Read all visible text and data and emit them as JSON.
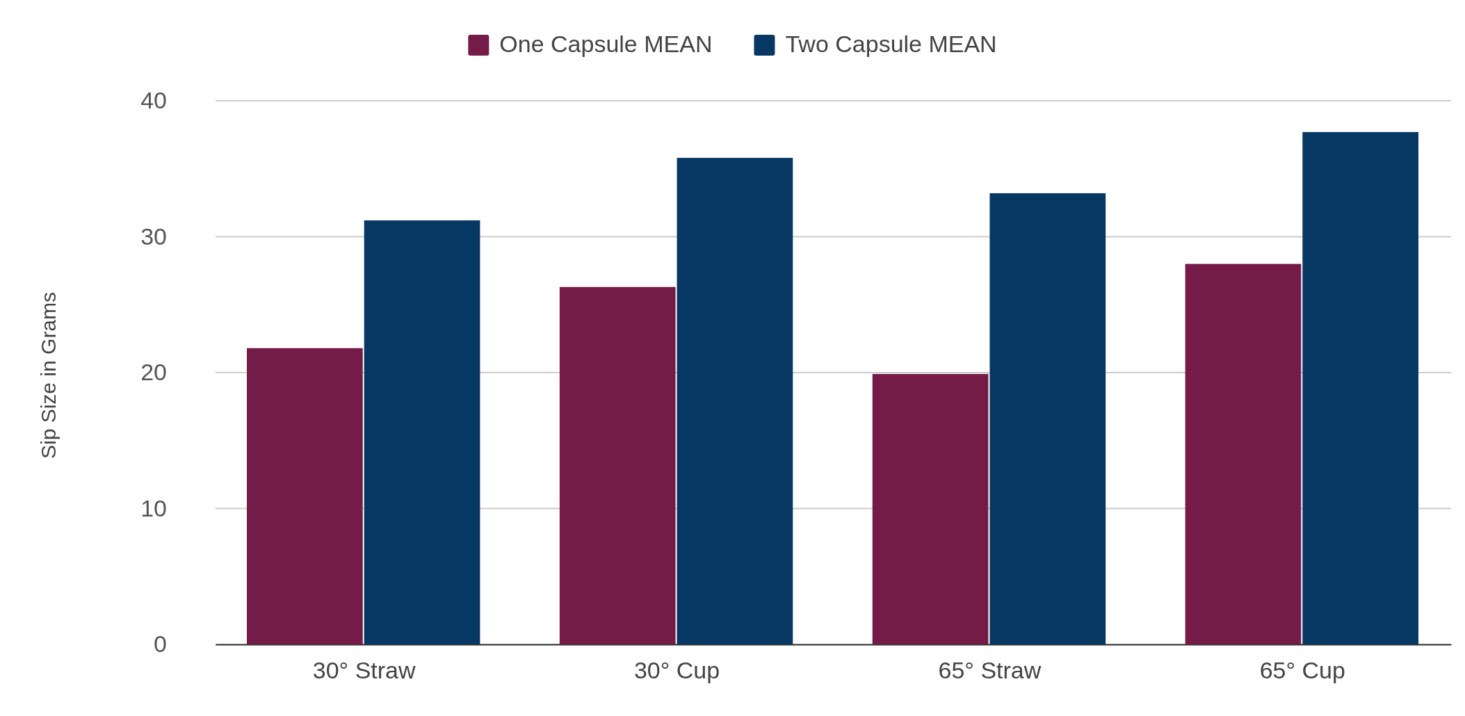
{
  "chart_data": {
    "type": "bar",
    "ylabel": "Sip Size in Grams",
    "categories": [
      "30° Straw",
      "30° Cup",
      "65°  Straw",
      "65° Cup"
    ],
    "series": [
      {
        "name": "One Capsule MEAN",
        "color": "#741b47",
        "values": [
          21.8,
          26.3,
          19.9,
          28.0
        ]
      },
      {
        "name": "Two Capsule MEAN",
        "color": "#073763",
        "values": [
          31.2,
          35.8,
          33.2,
          37.7
        ]
      }
    ],
    "ylim": [
      0,
      40
    ],
    "yticks": [
      0,
      10,
      20,
      30,
      40
    ],
    "grid": "y",
    "legend": "top"
  }
}
